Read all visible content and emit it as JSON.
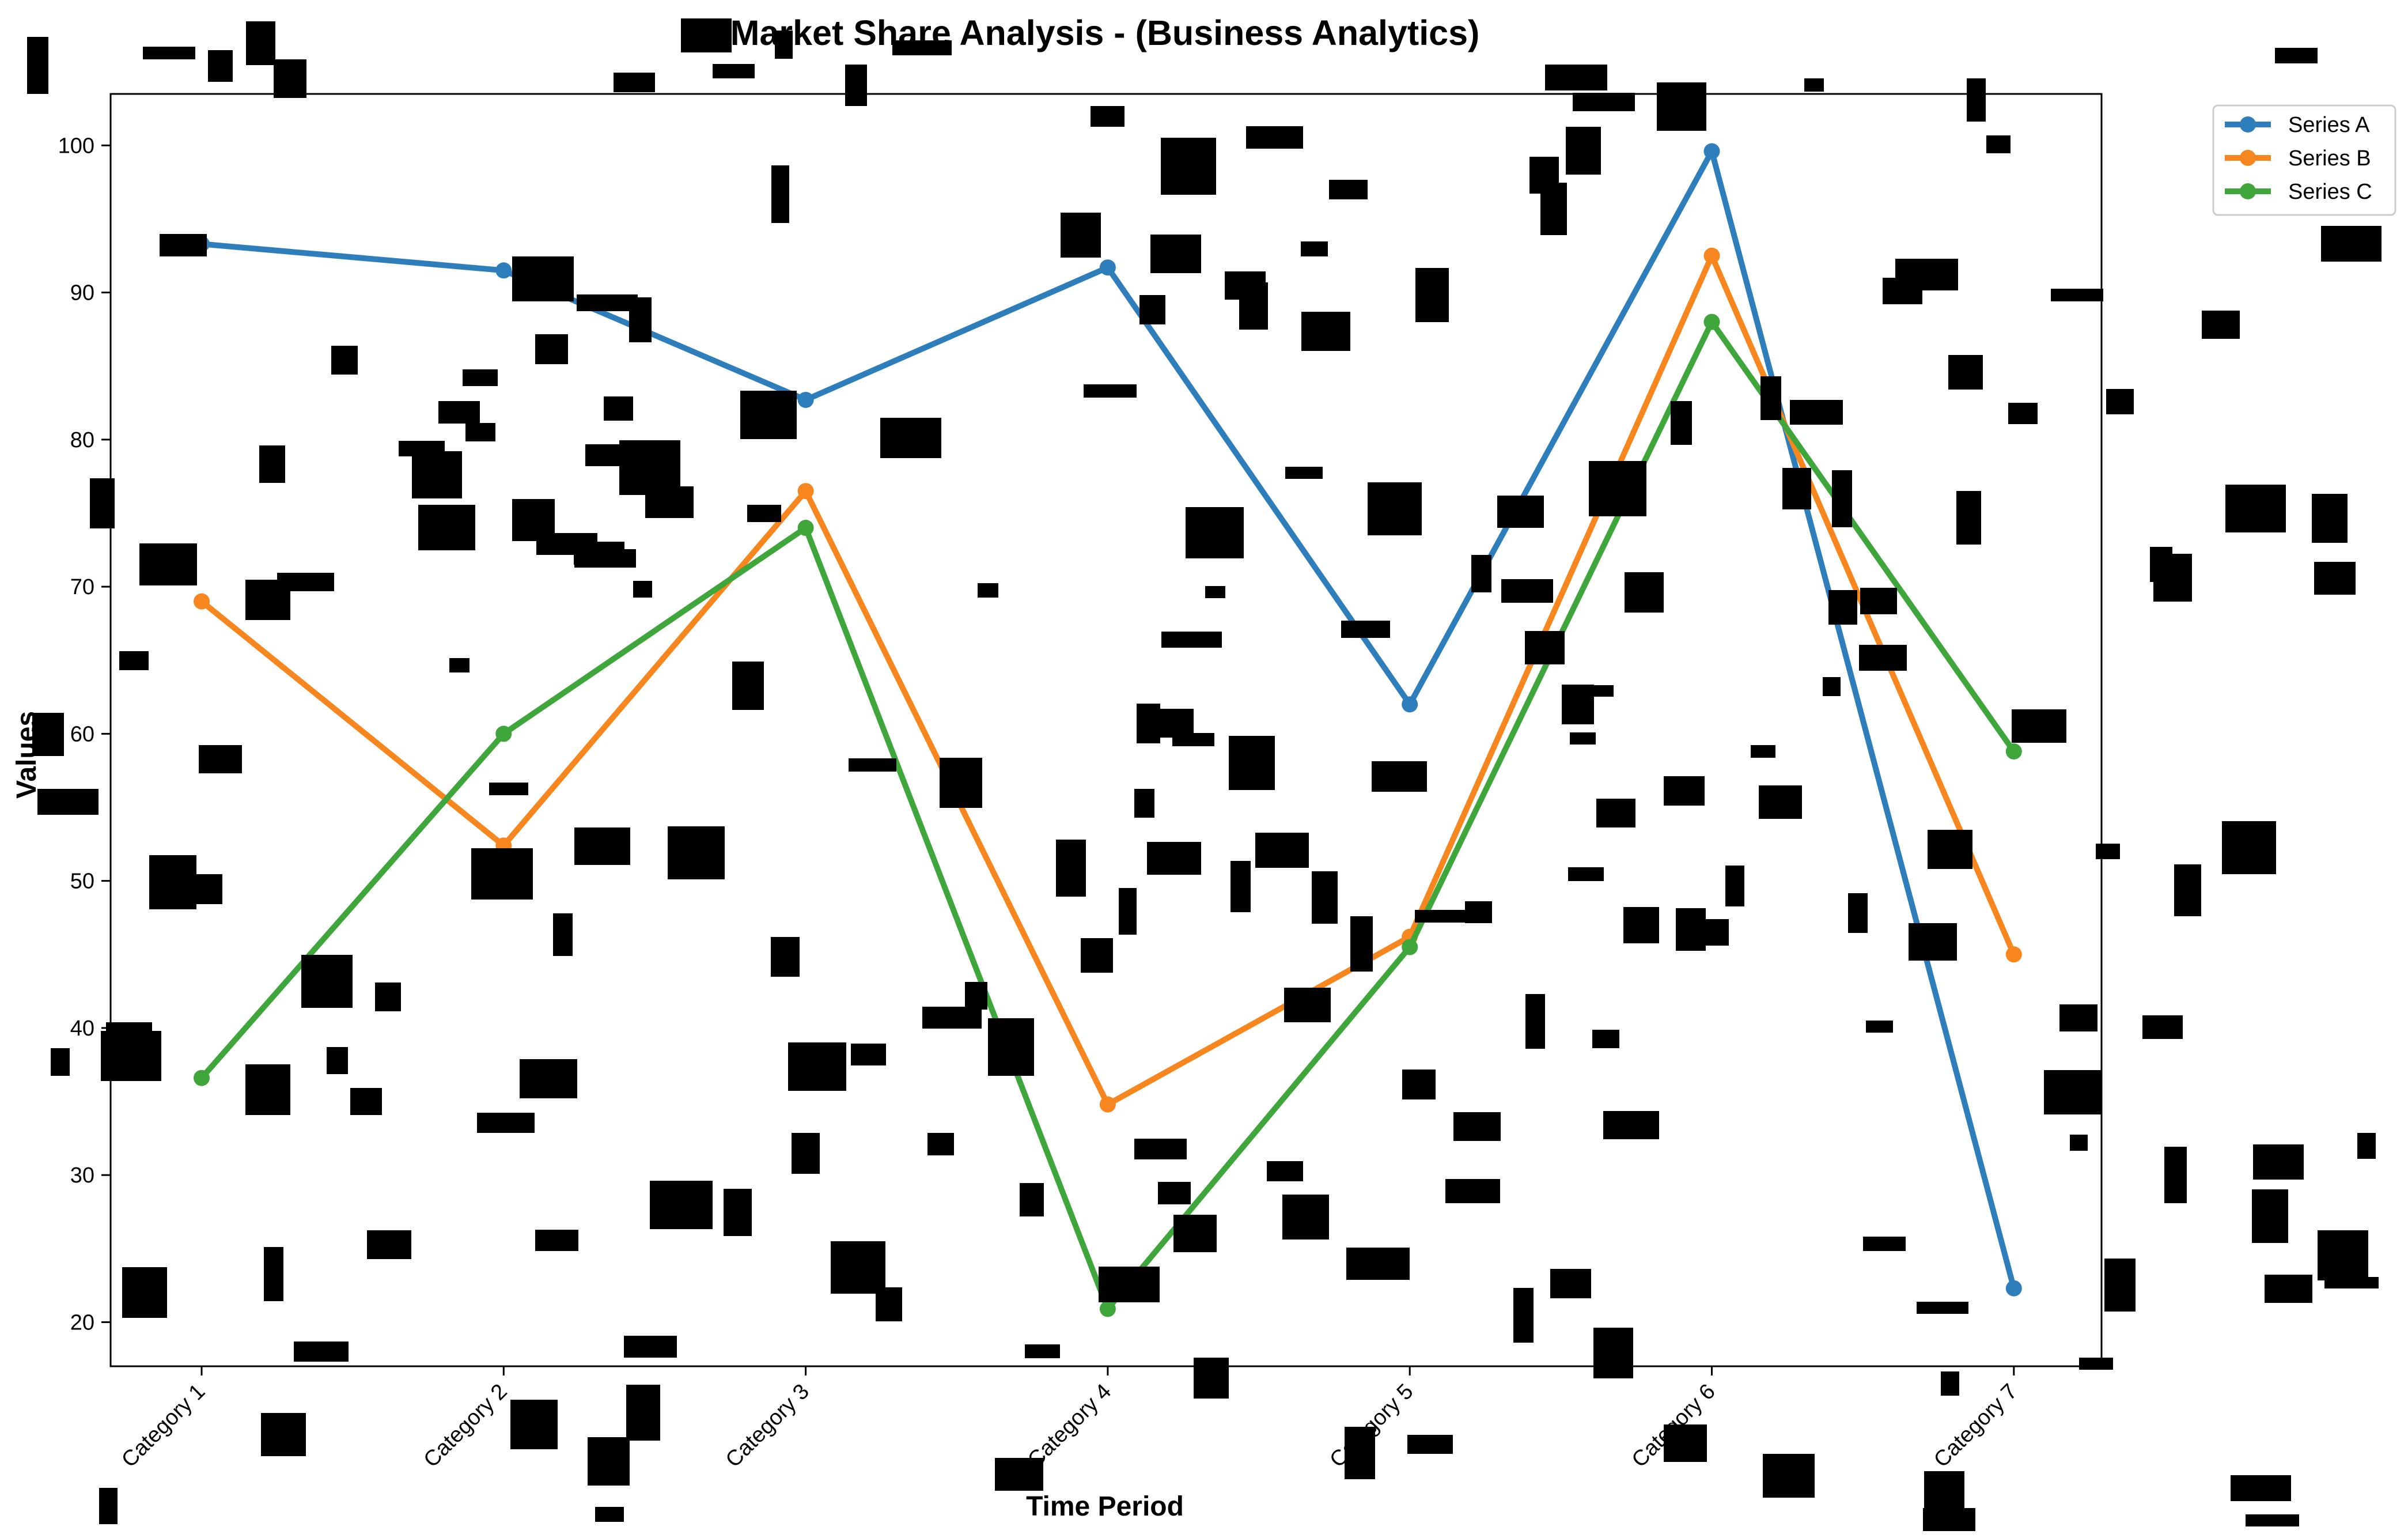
{
  "colors": {
    "series_a": "#2E7EBB",
    "series_b": "#F7861F",
    "series_c": "#3EA63A",
    "background": "#ffffff",
    "occluder": "#000000"
  },
  "chart_data": {
    "type": "line",
    "title": "Market Share Analysis - (Business Analytics)",
    "xlabel": "Time Period",
    "ylabel": "Values",
    "categories": [
      "Category 1",
      "Category 2",
      "Category 3",
      "Category 4",
      "Category 5",
      "Category 6",
      "Category 7"
    ],
    "series": [
      {
        "name": "Series A",
        "values": [
          93.3,
          91.5,
          82.7,
          91.7,
          62.0,
          99.6,
          22.3
        ]
      },
      {
        "name": "Series B",
        "values": [
          69.0,
          52.4,
          76.5,
          34.8,
          46.2,
          92.5,
          45.0
        ]
      },
      {
        "name": "Series C",
        "values": [
          36.6,
          60.0,
          74.0,
          20.9,
          45.5,
          88.0,
          58.8
        ]
      }
    ],
    "ylim": [
      17.0,
      103.5
    ],
    "yticks": [
      20,
      30,
      40,
      50,
      60,
      70,
      80,
      90,
      100
    ],
    "grid": false,
    "legend_position": "top-right",
    "marker": "circle"
  }
}
